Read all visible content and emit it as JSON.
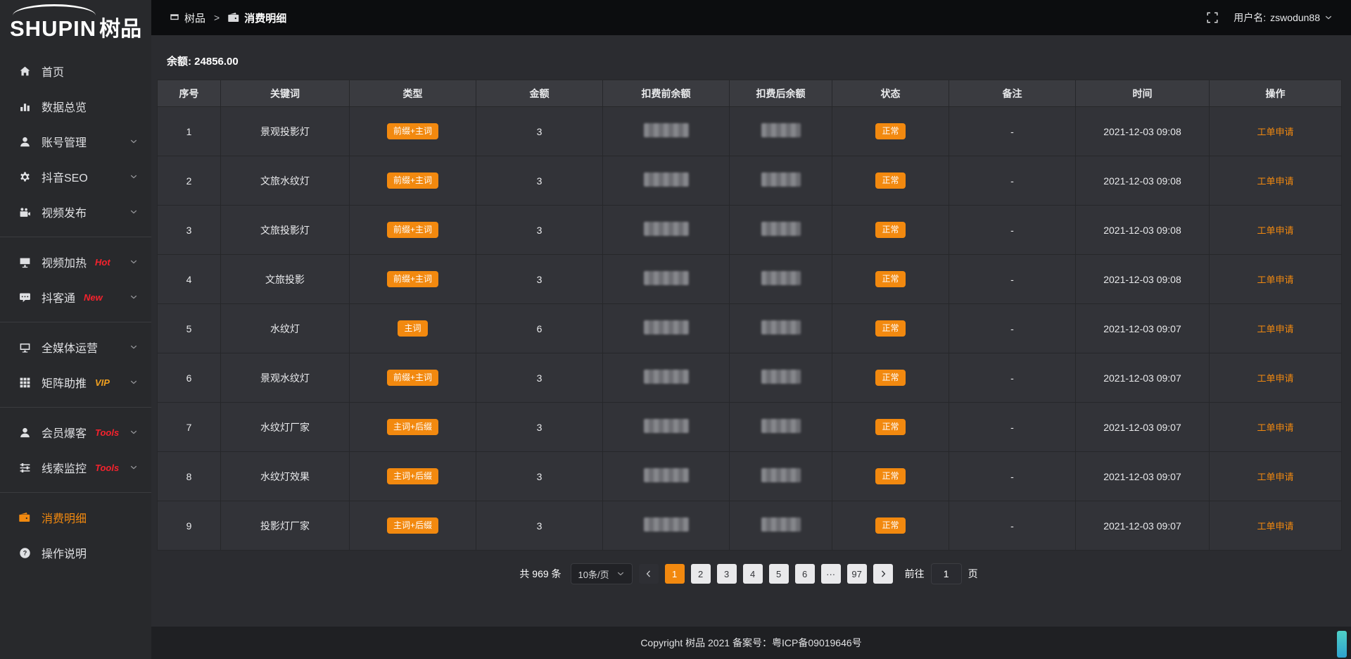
{
  "brand": {
    "logo_en": "SHUPIN",
    "logo_cn": "树品"
  },
  "topbar": {
    "breadcrumb": [
      {
        "name": "shupin",
        "icon": "screen-icon",
        "label": "树品"
      },
      {
        "name": "consume-detail",
        "icon": "wallet-icon",
        "label": "消费明细"
      }
    ],
    "separator": ">",
    "username_label": "用户名:",
    "username": "zswodun88"
  },
  "sidebar": {
    "items": [
      {
        "name": "home",
        "icon": "home-icon",
        "label": "首页"
      },
      {
        "name": "data-overview",
        "icon": "bar-chart-icon",
        "label": "数据总览"
      },
      {
        "name": "account-manage",
        "icon": "user-icon",
        "label": "账号管理",
        "chevron": true
      },
      {
        "name": "douyin-seo",
        "icon": "gear-icon",
        "label": "抖音SEO",
        "chevron": true
      },
      {
        "name": "video-publish",
        "icon": "video-camera-icon",
        "label": "视频发布",
        "chevron": true,
        "divider_after": true
      },
      {
        "name": "video-heat",
        "icon": "heat-screen-icon",
        "label": "视频加热",
        "tag": "Hot",
        "tag_color": "#f5222d",
        "chevron": true
      },
      {
        "name": "douketong",
        "icon": "chat-icon",
        "label": "抖客通",
        "tag": "New",
        "tag_color": "#f5222d",
        "chevron": true,
        "divider_after": true
      },
      {
        "name": "media-operation",
        "icon": "monitor-icon",
        "label": "全媒体运营",
        "chevron": true
      },
      {
        "name": "matrix-boost",
        "icon": "grid-icon",
        "label": "矩阵助推",
        "tag": "VIP",
        "tag_color": "#f0a020",
        "chevron": true,
        "divider_after": true
      },
      {
        "name": "member-burst",
        "icon": "member-icon",
        "label": "会员爆客",
        "tag": "Tools",
        "tag_color": "#f5222d",
        "chevron": true
      },
      {
        "name": "clue-monitor",
        "icon": "sliders-icon",
        "label": "线索监控",
        "tag": "Tools",
        "tag_color": "#f5222d",
        "chevron": true,
        "divider_after": true
      },
      {
        "name": "consume-detail",
        "icon": "wallet-icon",
        "label": "消费明细",
        "active": true
      },
      {
        "name": "operation-guide",
        "icon": "question-icon",
        "label": "操作说明"
      }
    ]
  },
  "balance": {
    "label": "余额:",
    "value": "24856.00"
  },
  "table": {
    "headers": [
      "序号",
      "关键词",
      "类型",
      "金额",
      "扣费前余额",
      "扣费后余额",
      "状态",
      "备注",
      "时间",
      "操作"
    ],
    "rows": [
      {
        "index": "1",
        "keyword": "景观投影灯",
        "type": "前缀+主词",
        "amount": "3",
        "balance_before_masked": true,
        "balance_after_masked": true,
        "status": "正常",
        "remark": "-",
        "time": "2021-12-03 09:08",
        "action": "工单申请"
      },
      {
        "index": "2",
        "keyword": "文旅水纹灯",
        "type": "前缀+主词",
        "amount": "3",
        "balance_before_masked": true,
        "balance_after_masked": true,
        "status": "正常",
        "remark": "-",
        "time": "2021-12-03 09:08",
        "action": "工单申请"
      },
      {
        "index": "3",
        "keyword": "文旅投影灯",
        "type": "前缀+主词",
        "amount": "3",
        "balance_before_masked": true,
        "balance_after_masked": true,
        "status": "正常",
        "remark": "-",
        "time": "2021-12-03 09:08",
        "action": "工单申请"
      },
      {
        "index": "4",
        "keyword": "文旅投影",
        "type": "前缀+主词",
        "amount": "3",
        "balance_before_masked": true,
        "balance_after_masked": true,
        "status": "正常",
        "remark": "-",
        "time": "2021-12-03 09:08",
        "action": "工单申请"
      },
      {
        "index": "5",
        "keyword": "水纹灯",
        "type": "主词",
        "amount": "6",
        "balance_before_masked": true,
        "balance_after_masked": true,
        "status": "正常",
        "remark": "-",
        "time": "2021-12-03 09:07",
        "action": "工单申请"
      },
      {
        "index": "6",
        "keyword": "景观水纹灯",
        "type": "前缀+主词",
        "amount": "3",
        "balance_before_masked": true,
        "balance_after_masked": true,
        "status": "正常",
        "remark": "-",
        "time": "2021-12-03 09:07",
        "action": "工单申请"
      },
      {
        "index": "7",
        "keyword": "水纹灯厂家",
        "type": "主词+后缀",
        "amount": "3",
        "balance_before_masked": true,
        "balance_after_masked": true,
        "status": "正常",
        "remark": "-",
        "time": "2021-12-03 09:07",
        "action": "工单申请"
      },
      {
        "index": "8",
        "keyword": "水纹灯效果",
        "type": "主词+后缀",
        "amount": "3",
        "balance_before_masked": true,
        "balance_after_masked": true,
        "status": "正常",
        "remark": "-",
        "time": "2021-12-03 09:07",
        "action": "工单申请"
      },
      {
        "index": "9",
        "keyword": "投影灯厂家",
        "type": "主词+后缀",
        "amount": "3",
        "balance_before_masked": true,
        "balance_after_masked": true,
        "status": "正常",
        "remark": "-",
        "time": "2021-12-03 09:07",
        "action": "工单申请"
      }
    ]
  },
  "pagination": {
    "total_text": "共 969 条",
    "page_size": "10条/页",
    "pages": [
      "1",
      "2",
      "3",
      "4",
      "5",
      "6",
      "···",
      "97"
    ],
    "active_page": "1",
    "goto_label": "前往",
    "goto_value": "1",
    "goto_suffix": "页"
  },
  "footer": {
    "copyright": "Copyright 树品 2021 备案号：粤ICP备09019646号"
  },
  "colors": {
    "accent": "#f2890f",
    "badge": "#f2890f",
    "tag_red": "#f5222d",
    "tag_gold": "#f0a020",
    "sidebar_bg": "#28292c",
    "topbar_bg": "#0c0d0f",
    "main_bg": "#2b2c30",
    "cell_bg": "#323338",
    "header_bg": "#3a3b40"
  }
}
